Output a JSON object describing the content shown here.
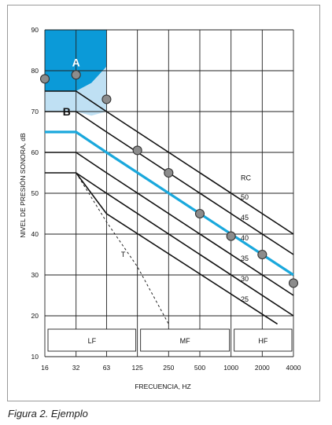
{
  "caption": "Figura 2. Ejemplo",
  "chart_data": {
    "type": "line",
    "title": "",
    "xlabel": "FRECUENCIA, HZ",
    "ylabel": "NIVEL DE PRESIÓN SONORA, dB",
    "x_scale": "log2",
    "x_ticks": [
      16,
      32,
      63,
      125,
      250,
      500,
      1000,
      2000,
      4000
    ],
    "y_ticks": [
      10,
      20,
      30,
      40,
      50,
      60,
      70,
      80,
      90
    ],
    "ylim": [
      10,
      90
    ],
    "grid": true,
    "colors": {
      "zone_a": "#0b9ad8",
      "zone_b": "#bfe0f3",
      "highlight": "#1aa8dc",
      "curve": "#111111",
      "point": "#8c8c8c"
    },
    "regions": [
      {
        "name": "A",
        "label_x": 32,
        "label_y": 82,
        "polygon": [
          [
            16,
            90
          ],
          [
            63,
            90
          ],
          [
            63,
            81
          ],
          [
            45,
            77
          ],
          [
            32,
            75
          ],
          [
            16,
            75
          ]
        ]
      },
      {
        "name": "B",
        "label_x": 26,
        "label_y": 70,
        "polygon": [
          [
            16,
            75
          ],
          [
            32,
            75
          ],
          [
            45,
            77
          ],
          [
            63,
            81
          ],
          [
            63,
            70
          ],
          [
            45,
            69
          ],
          [
            32,
            70
          ],
          [
            16,
            70
          ]
        ]
      }
    ],
    "rc_title": "RC",
    "rc_curves": [
      {
        "name": "50",
        "points": [
          [
            32,
            75
          ],
          [
            63,
            70
          ],
          [
            4000,
            40
          ]
        ]
      },
      {
        "name": "45",
        "points": [
          [
            32,
            70
          ],
          [
            63,
            65
          ],
          [
            4000,
            35
          ]
        ]
      },
      {
        "name": "40",
        "points": [
          [
            32,
            65
          ],
          [
            63,
            60
          ],
          [
            4000,
            30
          ]
        ]
      },
      {
        "name": "35",
        "points": [
          [
            32,
            60
          ],
          [
            63,
            55
          ],
          [
            4000,
            25
          ]
        ]
      },
      {
        "name": "30",
        "points": [
          [
            32,
            55
          ],
          [
            63,
            50
          ],
          [
            4000,
            20
          ]
        ]
      },
      {
        "name": "25",
        "points": [
          [
            32,
            55
          ],
          [
            63,
            45
          ],
          [
            2800,
            18
          ]
        ]
      }
    ],
    "highlight_curve": {
      "name": "40",
      "points": [
        [
          16,
          65
        ],
        [
          32,
          65
        ],
        [
          63,
          60
        ],
        [
          4000,
          30
        ]
      ]
    },
    "t_curve": {
      "label": "T",
      "points": [
        [
          32,
          55
        ],
        [
          63,
          43
        ],
        [
          125,
          32
        ],
        [
          250,
          18
        ]
      ]
    },
    "measured_points": [
      {
        "x": 16,
        "y": 78
      },
      {
        "x": 32,
        "y": 79
      },
      {
        "x": 63,
        "y": 73
      },
      {
        "x": 125,
        "y": 60.5
      },
      {
        "x": 250,
        "y": 55
      },
      {
        "x": 500,
        "y": 45
      },
      {
        "x": 1000,
        "y": 39.5
      },
      {
        "x": 2000,
        "y": 35
      },
      {
        "x": 4000,
        "y": 28
      }
    ],
    "bands": [
      {
        "label": "LF",
        "from": 16,
        "to": 125
      },
      {
        "label": "MF",
        "from": 125,
        "to": 1000
      },
      {
        "label": "HF",
        "from": 1000,
        "to": 4000
      }
    ]
  }
}
